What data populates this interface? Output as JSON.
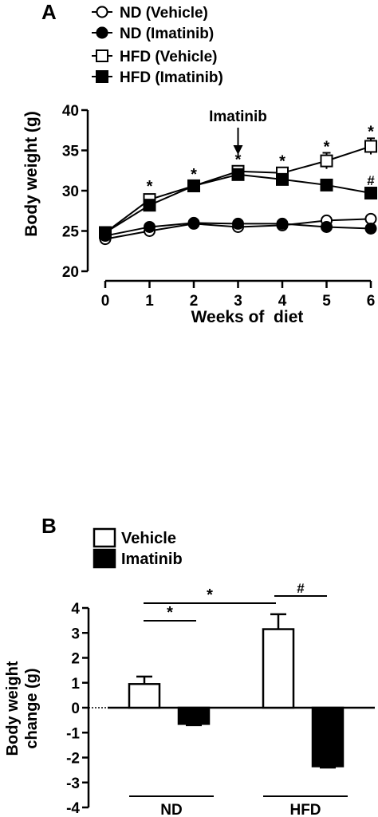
{
  "chart_data": [
    {
      "type": "line",
      "panel_label": "A",
      "xlabel": "Weeks of  diet",
      "ylabel": "Body weight (g)",
      "xlim": [
        0,
        6
      ],
      "ylim": [
        20,
        40
      ],
      "x": [
        0,
        1,
        2,
        3,
        4,
        5,
        6
      ],
      "x_tick_labels": [
        "0",
        "1",
        "2",
        "3",
        "4",
        "5",
        "6"
      ],
      "y_ticks": [
        20,
        25,
        30,
        35,
        40
      ],
      "y_tick_labels": [
        "20",
        "25",
        "30",
        "35",
        "40"
      ],
      "legend_position": "top-left",
      "series": [
        {
          "name": "ND (Vehicle)",
          "marker": "open-circle",
          "values": [
            24.0,
            25.0,
            25.9,
            25.5,
            25.7,
            26.3,
            26.5
          ],
          "error": [
            0.3,
            0.3,
            0.3,
            0.3,
            0.3,
            0.3,
            0.3
          ]
        },
        {
          "name": "ND (Imatinib)",
          "marker": "filled-circle",
          "values": [
            24.4,
            25.5,
            26.0,
            25.9,
            25.9,
            25.5,
            25.3
          ],
          "error": [
            0.3,
            0.3,
            0.3,
            0.3,
            0.3,
            0.3,
            0.3
          ]
        },
        {
          "name": "HFD (Vehicle)",
          "marker": "open-square",
          "values": [
            24.8,
            28.9,
            30.6,
            32.4,
            32.2,
            33.7,
            35.5
          ],
          "error": [
            0.3,
            0.5,
            0.5,
            0.6,
            0.5,
            1.0,
            1.0
          ]
        },
        {
          "name": "HFD (Imatinib)",
          "marker": "filled-square",
          "values": [
            24.8,
            28.2,
            30.6,
            32.0,
            31.4,
            30.7,
            29.7
          ],
          "error": [
            0.3,
            0.5,
            0.5,
            0.6,
            0.5,
            0.6,
            0.6
          ]
        }
      ],
      "annotations": [
        {
          "text": "Imatinib",
          "x": 3,
          "arrow": true
        },
        {
          "text": "*",
          "x": 1,
          "y": 30.5
        },
        {
          "text": "*",
          "x": 2,
          "y": 32.0
        },
        {
          "text": "*",
          "x": 3,
          "y": 33.8
        },
        {
          "text": "*",
          "x": 4,
          "y": 33.6
        },
        {
          "text": "*",
          "x": 5,
          "y": 35.4
        },
        {
          "text": "*",
          "x": 6,
          "y": 37.3
        },
        {
          "text": "#",
          "x": 6,
          "y": 31.3
        }
      ]
    },
    {
      "type": "bar",
      "panel_label": "B",
      "ylabel": "Body weight change (g)",
      "ylabel_lines": [
        "Body weight",
        "change (g)"
      ],
      "ylim": [
        -4,
        4
      ],
      "y_ticks": [
        -4,
        -3,
        -2,
        -1,
        0,
        1,
        2,
        3,
        4
      ],
      "y_tick_labels": [
        "-4",
        "-3",
        "-2",
        "-1",
        "0",
        "1",
        "2",
        "3",
        "4"
      ],
      "groups": [
        "ND",
        "HFD"
      ],
      "legend_position": "top-left",
      "series": [
        {
          "name": "Vehicle",
          "fill": "white",
          "values": [
            0.95,
            3.15
          ],
          "error": [
            0.3,
            0.6
          ]
        },
        {
          "name": "Imatinib",
          "fill": "black",
          "values": [
            -0.65,
            -2.35
          ],
          "error": [
            0.05,
            0.05
          ]
        }
      ],
      "significance": [
        {
          "text": "*",
          "between": "ND Vehicle vs ND Imatinib"
        },
        {
          "text": "*",
          "between": "ND Vehicle vs HFD Vehicle"
        },
        {
          "text": "#",
          "between": "HFD Vehicle vs HFD Imatinib"
        }
      ]
    }
  ]
}
